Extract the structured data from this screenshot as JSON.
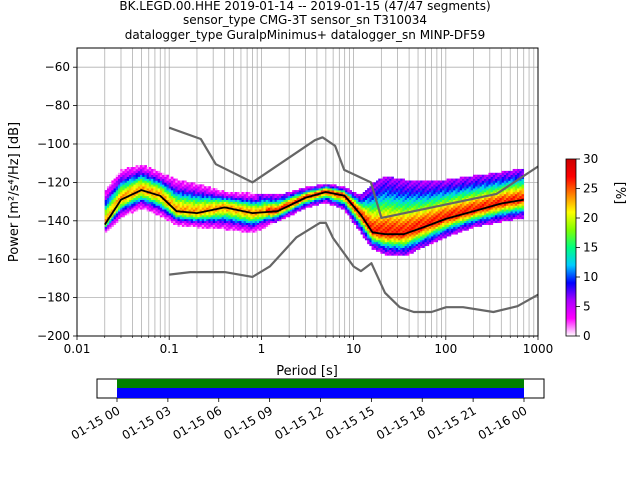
{
  "title_lines": [
    "BK.LEGD.00.HHE   2019-01-14 -- 2019-01-15  (47/47 segments)",
    "sensor_type CMG-3T sensor_sn T310034",
    "datalogger_type GuralpMinimus+ datalogger_sn MINP-DF59"
  ],
  "chart_data": {
    "type": "heatmap",
    "xlabel": "Period [s]",
    "ylabel": "Power [m²/s⁴/Hz] [dB]",
    "x_scale": "log",
    "xlim": [
      0.01,
      1000
    ],
    "ylim": [
      -200,
      -50
    ],
    "x_ticks": [
      {
        "v": 0.01,
        "label": "0.01"
      },
      {
        "v": 0.1,
        "label": "0.1"
      },
      {
        "v": 1,
        "label": "1"
      },
      {
        "v": 10,
        "label": "10"
      },
      {
        "v": 100,
        "label": "100"
      },
      {
        "v": 1000,
        "label": "1000"
      }
    ],
    "y_ticks": [
      -60,
      -80,
      -100,
      -120,
      -140,
      -160,
      -180,
      -200
    ],
    "grid": true,
    "colorbar": {
      "label": "[%]",
      "range": [
        0,
        30
      ],
      "ticks": [
        0,
        5,
        10,
        15,
        20,
        25,
        30
      ],
      "colors": [
        "#ffffff",
        "#ff00ff",
        "#aa00ff",
        "#0000ff",
        "#00ccff",
        "#00ff80",
        "#80ff00",
        "#ffff00",
        "#ff8000",
        "#ff0000",
        "#cc0000"
      ]
    },
    "series": [
      {
        "name": "NHNM",
        "x": [
          0.1,
          0.22,
          0.32,
          0.8,
          3.8,
          4.6,
          6.3,
          7.9,
          15.4,
          20,
          354.8,
          10000
        ],
        "y": [
          -91.5,
          -97.4,
          -110.5,
          -120,
          -98,
          -96.5,
          -101,
          -113.5,
          -120,
          -138.5,
          -126,
          -80
        ]
      },
      {
        "name": "NLNM",
        "x": [
          0.1,
          0.17,
          0.4,
          0.8,
          1.24,
          2.4,
          4.3,
          5.0,
          6.0,
          10.0,
          12.0,
          15.6,
          21.9,
          31.6,
          45.0,
          70.0,
          101.0,
          154.0,
          328.0,
          600.0,
          1000.0
        ],
        "y": [
          -168,
          -166.7,
          -166.7,
          -169.2,
          -163.7,
          -148.6,
          -141.1,
          -141.1,
          -149,
          -163.8,
          -166.2,
          -162.1,
          -177.5,
          -185,
          -187.5,
          -187.5,
          -185,
          -185,
          -187.5,
          -184.5,
          -178.5
        ]
      },
      {
        "name": "mode",
        "x": [
          0.02,
          0.03,
          0.05,
          0.08,
          0.12,
          0.2,
          0.4,
          0.8,
          1.5,
          3,
          5,
          8,
          12,
          16,
          22,
          35,
          60,
          100,
          200,
          400,
          700
        ],
        "y": [
          -142,
          -129,
          -124,
          -127,
          -135,
          -136,
          -133,
          -136,
          -135,
          -128,
          -125,
          -127,
          -137,
          -146,
          -147,
          -147,
          -143,
          -139,
          -135,
          -131,
          -129
        ]
      },
      {
        "name": "upper_envelope",
        "x": [
          0.02,
          0.03,
          0.05,
          0.08,
          0.12,
          0.2,
          0.4,
          0.8,
          1.5,
          3,
          5,
          8,
          12,
          16,
          22,
          35,
          60,
          100,
          200,
          400,
          700
        ],
        "y": [
          -126,
          -115,
          -112,
          -116,
          -120,
          -122,
          -126,
          -127,
          -128,
          -124,
          -122,
          -124,
          -128,
          -122,
          -118,
          -120,
          -121,
          -120,
          -118,
          -116,
          -114
        ]
      },
      {
        "name": "lower_envelope",
        "x": [
          0.02,
          0.03,
          0.05,
          0.08,
          0.12,
          0.2,
          0.4,
          0.8,
          1.5,
          3,
          5,
          8,
          12,
          16,
          22,
          35,
          60,
          100,
          200,
          400,
          700
        ],
        "y": [
          -146,
          -138,
          -133,
          -137,
          -142,
          -143,
          -144,
          -146,
          -140,
          -133,
          -130,
          -134,
          -146,
          -154,
          -157,
          -158,
          -153,
          -148,
          -143,
          -140,
          -138
        ]
      }
    ]
  },
  "timeline": {
    "tick_labels": [
      "01-15 00",
      "01-15 03",
      "01-15 06",
      "01-15 09",
      "01-15 12",
      "01-15 15",
      "01-15 18",
      "01-15 21",
      "01-16 00"
    ],
    "bar_colors": {
      "top": "#008000",
      "bottom": "#0000ff"
    }
  }
}
